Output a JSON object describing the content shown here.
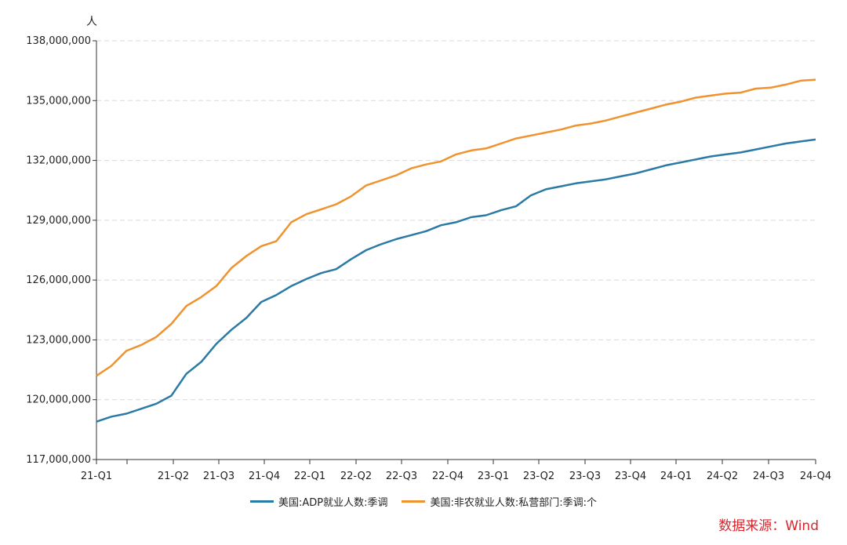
{
  "chart_data": {
    "type": "line",
    "y_unit": "人",
    "ylim": [
      117000000,
      138000000
    ],
    "y_ticks": [
      117000000,
      120000000,
      123000000,
      126000000,
      129000000,
      132000000,
      135000000,
      138000000
    ],
    "y_tick_labels": [
      "117,000,000",
      "120,000,000",
      "123,000,000",
      "126,000,000",
      "129,000,000",
      "132,000,000",
      "135,000,000",
      "138,000,000"
    ],
    "x_tick_labels": [
      "21-Q1",
      "",
      "21-Q2",
      "21-Q3",
      "21-Q4",
      "22-Q1",
      "22-Q2",
      "22-Q3",
      "22-Q4",
      "23-Q1",
      "23-Q2",
      "23-Q3",
      "23-Q4",
      "24-Q1",
      "24-Q2",
      "24-Q3",
      "24-Q4"
    ],
    "x_tick_indices": [
      0,
      2,
      6,
      9,
      12,
      15,
      18,
      21,
      24,
      27,
      30,
      33,
      36,
      39,
      42,
      45,
      48
    ],
    "grid": true,
    "legend_position": "bottom",
    "series": [
      {
        "name": "美国:ADP就业人数:季调",
        "color": "#2a7aa6",
        "values": [
          118900000,
          119150000,
          119300000,
          119550000,
          119800000,
          120200000,
          121300000,
          121900000,
          122800000,
          123500000,
          124100000,
          124900000,
          125250000,
          125700000,
          126050000,
          126350000,
          126550000,
          127050000,
          127500000,
          127800000,
          128050000,
          128250000,
          128450000,
          128750000,
          128900000,
          129150000,
          129250000,
          129500000,
          129700000,
          130250000,
          130550000,
          130700000,
          130850000,
          130950000,
          131050000,
          131200000,
          131350000,
          131550000,
          131750000,
          131900000,
          132050000,
          132200000,
          132300000,
          132400000,
          132550000,
          132700000,
          132850000,
          132950000,
          133050000
        ]
      },
      {
        "name": "美国:非农就业人数:私营部门:季调:个",
        "color": "#f0922e",
        "values": [
          121200000,
          121700000,
          122450000,
          122750000,
          123150000,
          123800000,
          124700000,
          125150000,
          125700000,
          126600000,
          127200000,
          127700000,
          127950000,
          128900000,
          129300000,
          129550000,
          129800000,
          130200000,
          130750000,
          131000000,
          131250000,
          131600000,
          131800000,
          131950000,
          132300000,
          132500000,
          132600000,
          132850000,
          133100000,
          133250000,
          133400000,
          133550000,
          133750000,
          133850000,
          134000000,
          134200000,
          134400000,
          134600000,
          134800000,
          134950000,
          135150000,
          135250000,
          135350000,
          135400000,
          135600000,
          135650000,
          135800000,
          136000000,
          136050000
        ]
      }
    ]
  },
  "source_label": "数据来源：Wind"
}
